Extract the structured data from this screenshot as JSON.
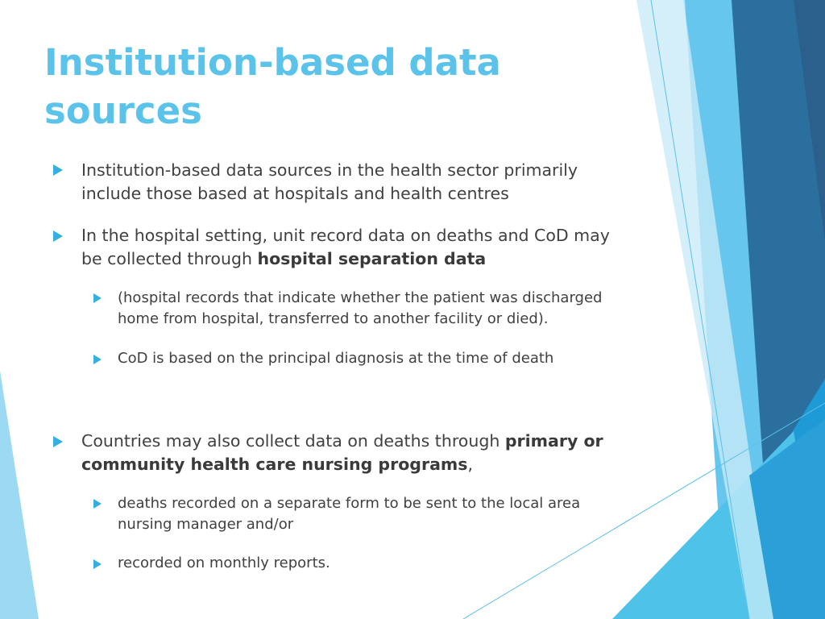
{
  "slide": {
    "title_line1": "Institution-based data",
    "title_line2": "sources",
    "bullets": {
      "b1": {
        "text": " Institution-based data sources in the health sector primarily\ninclude those based at hospitals and health centres"
      },
      "b2": {
        "pre": " In the hospital setting, unit record data on deaths and CoD may\nbe collected through ",
        "bold": "hospital separation data"
      },
      "b2a": {
        "text": "(hospital records that indicate whether the patient was discharged\nhome from hospital, transferred to another facility or died)."
      },
      "b2b": {
        "text": " CoD is based on the principal diagnosis at the time of death"
      },
      "b3": {
        "pre": "Countries may also collect data on deaths through ",
        "bold": "primary or\ncommunity health care nursing programs",
        "post": ","
      },
      "b3a": {
        "text": "deaths recorded on a separate form to be sent to the local area\nnursing manager and/or"
      },
      "b3b": {
        "text": "recorded on monthly reports."
      }
    },
    "colors": {
      "title": "#5bc3e9",
      "bullet_arrow": "#35aee0",
      "body_text": "#404040",
      "deco_dark": "#2a6f9e",
      "deco_mid": "#1e9ad6",
      "deco_light": "#8fd3f0"
    },
    "icons": {
      "bullet": "triangle-right-arrow"
    }
  }
}
